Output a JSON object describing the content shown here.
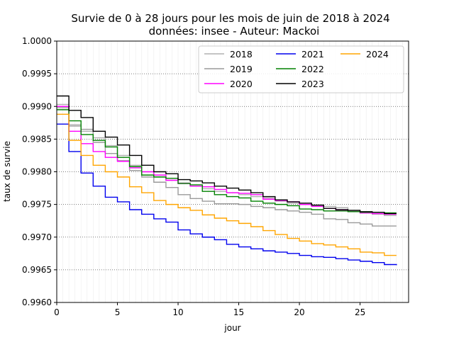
{
  "chart_data": {
    "type": "line",
    "step": "post",
    "title_line1": "Survie de 0 à 28 jours pour les mois de juin de 2018 à 2024",
    "title_line2": "données: insee - Auteur: Mackoi",
    "xlabel": "jour",
    "ylabel": "taux de survie",
    "xlim": [
      0,
      29
    ],
    "ylim": [
      0.996,
      1.0
    ],
    "xticks": [
      0,
      5,
      10,
      15,
      20,
      25
    ],
    "yticks": [
      0.996,
      0.9965,
      0.997,
      0.9975,
      0.998,
      0.9985,
      0.999,
      0.9995,
      1.0
    ],
    "ytick_labels": [
      "0.9960",
      "0.9965",
      "0.9970",
      "0.9975",
      "0.9980",
      "0.9985",
      "0.9990",
      "0.9995",
      "1.0000"
    ],
    "grid": {
      "y_major": true,
      "x_minor": true
    },
    "legend": {
      "position": "top-right",
      "columns": 3
    },
    "x": [
      0,
      1,
      2,
      3,
      4,
      5,
      6,
      7,
      8,
      9,
      10,
      11,
      12,
      13,
      14,
      15,
      16,
      17,
      18,
      19,
      20,
      21,
      22,
      23,
      24,
      25,
      26,
      27,
      28
    ],
    "series": [
      {
        "name": "2018",
        "color": "#b0b0b0",
        "values": [
          0.99903,
          0.99872,
          0.99862,
          0.99852,
          0.9984,
          0.99825,
          0.9981,
          0.998,
          0.99792,
          0.99787,
          0.99783,
          0.99778,
          0.99774,
          0.9977,
          0.99768,
          0.99765,
          0.99762,
          0.9976,
          0.99755,
          0.99752,
          0.9975,
          0.99748,
          0.99747,
          0.99745,
          0.9974,
          0.99737,
          0.99735,
          0.99733,
          0.99733
        ]
      },
      {
        "name": "2019",
        "color": "#9a9a9a",
        "values": [
          0.99898,
          0.9987,
          0.99865,
          0.99845,
          0.99828,
          0.99817,
          0.99802,
          0.99792,
          0.99784,
          0.99776,
          0.99765,
          0.99759,
          0.99755,
          0.99751,
          0.99751,
          0.9975,
          0.99747,
          0.99745,
          0.99742,
          0.9974,
          0.99738,
          0.99735,
          0.99728,
          0.99727,
          0.99722,
          0.9972,
          0.99717,
          0.99717,
          0.99717
        ]
      },
      {
        "name": "2020",
        "color": "#ff00ff",
        "values": [
          0.999,
          0.99862,
          0.99843,
          0.99831,
          0.99822,
          0.99816,
          0.99806,
          0.998,
          0.99795,
          0.99787,
          0.99782,
          0.99778,
          0.99777,
          0.99773,
          0.99768,
          0.99767,
          0.99765,
          0.99758,
          0.99756,
          0.99754,
          0.9975,
          0.99747,
          0.99744,
          0.99741,
          0.99739,
          0.99737,
          0.99736,
          0.99735,
          0.99735
        ]
      },
      {
        "name": "2021",
        "color": "#0000ee",
        "values": [
          0.99873,
          0.99831,
          0.99798,
          0.99778,
          0.99761,
          0.99754,
          0.99742,
          0.99735,
          0.99728,
          0.99723,
          0.99711,
          0.99705,
          0.997,
          0.99696,
          0.99689,
          0.99685,
          0.99682,
          0.99679,
          0.99677,
          0.99675,
          0.99672,
          0.9967,
          0.99669,
          0.99667,
          0.99665,
          0.99663,
          0.99661,
          0.99658,
          0.99657
        ]
      },
      {
        "name": "2022",
        "color": "#008000",
        "values": [
          0.99895,
          0.99878,
          0.99857,
          0.99848,
          0.99838,
          0.99822,
          0.99808,
          0.99795,
          0.99792,
          0.9979,
          0.99782,
          0.9978,
          0.9977,
          0.99765,
          0.99762,
          0.9976,
          0.99755,
          0.99752,
          0.9975,
          0.99748,
          0.99743,
          0.99742,
          0.9974,
          0.9974,
          0.99739,
          0.99738,
          0.99738,
          0.99737,
          0.99737
        ]
      },
      {
        "name": "2023",
        "color": "#000000",
        "values": [
          0.99916,
          0.99894,
          0.99883,
          0.99862,
          0.99853,
          0.99841,
          0.99825,
          0.9981,
          0.998,
          0.99797,
          0.99788,
          0.99786,
          0.99783,
          0.99778,
          0.99775,
          0.99772,
          0.99768,
          0.99762,
          0.99757,
          0.99754,
          0.99752,
          0.99749,
          0.99744,
          0.99742,
          0.99741,
          0.99739,
          0.99738,
          0.99736,
          0.99736
        ]
      },
      {
        "name": "2024",
        "color": "#ffa500",
        "values": [
          0.99888,
          0.99848,
          0.99825,
          0.9981,
          0.998,
          0.99792,
          0.99777,
          0.99768,
          0.99756,
          0.9975,
          0.99745,
          0.99741,
          0.99734,
          0.99729,
          0.99725,
          0.99721,
          0.99716,
          0.9971,
          0.99704,
          0.99698,
          0.99694,
          0.9969,
          0.99688,
          0.99685,
          0.99682,
          0.99677,
          0.99676,
          0.99672,
          0.99672
        ]
      }
    ]
  }
}
